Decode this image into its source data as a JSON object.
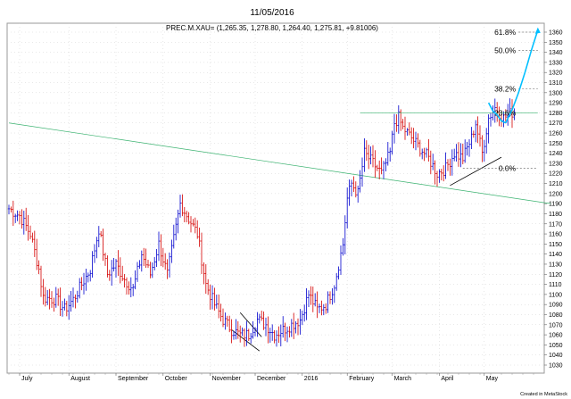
{
  "header": {
    "date": "11/05/2016",
    "quote": "PREC.M.XAU= (1,265.35, 1,278.80, 1,264.40, 1,275.81, +9.81006)"
  },
  "footer": {
    "credit": "Created in MetaStock"
  },
  "chart_data": {
    "type": "ohlc",
    "ylim": [
      1020,
      1365
    ],
    "y_ticks": [
      1030,
      1040,
      1050,
      1060,
      1070,
      1080,
      1090,
      1100,
      1110,
      1120,
      1130,
      1140,
      1150,
      1160,
      1170,
      1180,
      1190,
      1200,
      1210,
      1220,
      1230,
      1240,
      1250,
      1260,
      1270,
      1280,
      1290,
      1300,
      1310,
      1320,
      1330,
      1340,
      1350,
      1360
    ],
    "x_labels": [
      {
        "label": "July",
        "bar": 5
      },
      {
        "label": "August",
        "bar": 28
      },
      {
        "label": "September",
        "bar": 50
      },
      {
        "label": "October",
        "bar": 72
      },
      {
        "label": "November",
        "bar": 94
      },
      {
        "label": "December",
        "bar": 115
      },
      {
        "label": "2016",
        "bar": 137
      },
      {
        "label": "February",
        "bar": 158
      },
      {
        "label": "March",
        "bar": 179
      },
      {
        "label": "April",
        "bar": 201
      },
      {
        "label": "May",
        "bar": 222
      }
    ],
    "close_path": [
      [
        0,
        1185
      ],
      [
        5,
        1178
      ],
      [
        10,
        1160
      ],
      [
        14,
        1125
      ],
      [
        16,
        1097
      ],
      [
        22,
        1095
      ],
      [
        26,
        1085
      ],
      [
        30,
        1095
      ],
      [
        34,
        1110
      ],
      [
        38,
        1125
      ],
      [
        42,
        1165
      ],
      [
        46,
        1120
      ],
      [
        50,
        1130
      ],
      [
        54,
        1115
      ],
      [
        58,
        1105
      ],
      [
        62,
        1140
      ],
      [
        66,
        1120
      ],
      [
        70,
        1150
      ],
      [
        74,
        1120
      ],
      [
        77,
        1155
      ],
      [
        80,
        1190
      ],
      [
        84,
        1175
      ],
      [
        88,
        1160
      ],
      [
        92,
        1110
      ],
      [
        96,
        1090
      ],
      [
        100,
        1075
      ],
      [
        104,
        1065
      ],
      [
        108,
        1060
      ],
      [
        112,
        1060
      ],
      [
        116,
        1075
      ],
      [
        120,
        1070
      ],
      [
        124,
        1060
      ],
      [
        128,
        1065
      ],
      [
        132,
        1070
      ],
      [
        136,
        1075
      ],
      [
        140,
        1100
      ],
      [
        144,
        1085
      ],
      [
        148,
        1090
      ],
      [
        152,
        1110
      ],
      [
        156,
        1150
      ],
      [
        158,
        1195
      ],
      [
        160,
        1210
      ],
      [
        163,
        1200
      ],
      [
        166,
        1240
      ],
      [
        170,
        1230
      ],
      [
        174,
        1220
      ],
      [
        178,
        1240
      ],
      [
        180,
        1270
      ],
      [
        182,
        1275
      ],
      [
        184,
        1265
      ],
      [
        188,
        1255
      ],
      [
        192,
        1245
      ],
      [
        196,
        1235
      ],
      [
        200,
        1220
      ],
      [
        204,
        1225
      ],
      [
        208,
        1240
      ],
      [
        212,
        1235
      ],
      [
        216,
        1255
      ],
      [
        218,
        1270
      ],
      [
        221,
        1240
      ],
      [
        224,
        1275
      ],
      [
        227,
        1285
      ],
      [
        231,
        1275
      ],
      [
        236,
        1282
      ]
    ],
    "fib_levels": [
      {
        "label": "61.8%",
        "value": 1360
      },
      {
        "label": "50.0%",
        "value": 1342
      },
      {
        "label": "38.2%",
        "value": 1304
      },
      {
        "label": "23.6%",
        "value": 1280
      },
      {
        "label": "0.0%",
        "value": 1225
      }
    ],
    "fib_lines": [
      {
        "from_bar": 238,
        "to_bar": 247,
        "value": 1360
      },
      {
        "from_bar": 238,
        "to_bar": 247,
        "value": 1342
      },
      {
        "from_bar": 238,
        "to_bar": 247,
        "value": 1304
      },
      {
        "from_bar": 164,
        "to_bar": 247,
        "value": 1280
      },
      {
        "from_bar": 212,
        "to_bar": 247,
        "value": 1225
      }
    ],
    "trendlines": [
      {
        "name": "long-downtrend",
        "color": "#3cb371",
        "points": [
          [
            0,
            1270
          ],
          [
            253,
            1190
          ]
        ]
      },
      {
        "name": "support-rising",
        "color": "#000000",
        "points": [
          [
            206,
            1208
          ],
          [
            230,
            1236
          ]
        ]
      },
      {
        "name": "channel-upper",
        "color": "#000000",
        "points": [
          [
            108,
            1082
          ],
          [
            118,
            1058
          ]
        ]
      },
      {
        "name": "channel-lower",
        "color": "#000000",
        "points": [
          [
            104,
            1065
          ],
          [
            117,
            1044
          ]
        ]
      }
    ],
    "projections": [
      {
        "name": "projection-pullback",
        "color": "#00bfff",
        "points": [
          [
            224,
            1290
          ],
          [
            226,
            1282
          ],
          [
            228,
            1278
          ],
          [
            230,
            1272
          ],
          [
            232,
            1270
          ]
        ]
      },
      {
        "name": "projection-rally",
        "color": "#00bfff",
        "points": [
          [
            232,
            1270
          ],
          [
            235,
            1283
          ],
          [
            238,
            1300
          ],
          [
            241,
            1320
          ],
          [
            244,
            1342
          ],
          [
            247,
            1362
          ]
        ]
      }
    ],
    "colors": {
      "up": "#0000cd",
      "down": "#d40000",
      "grid": "#d0d0d0"
    }
  }
}
